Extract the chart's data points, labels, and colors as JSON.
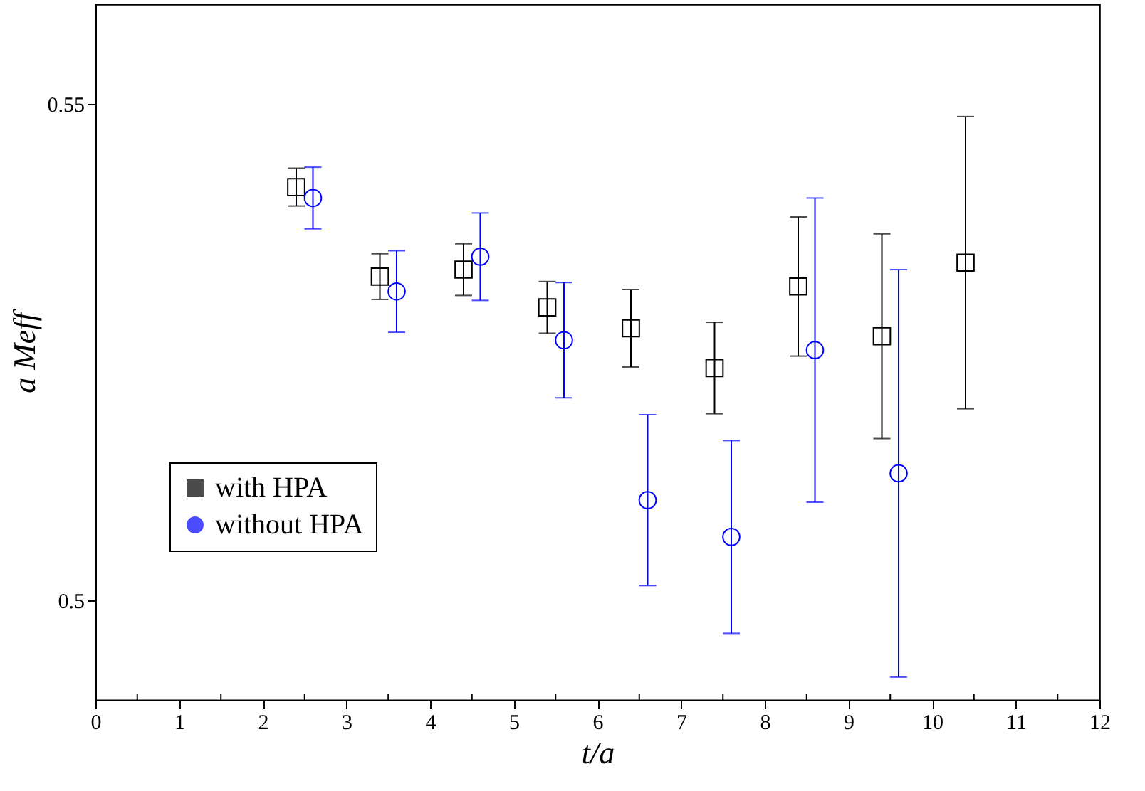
{
  "chart_data": {
    "type": "scatter",
    "xlabel": "t/a",
    "ylabel": "a Meff",
    "xlim": [
      0,
      12
    ],
    "ylim": [
      0.49,
      0.56
    ],
    "xticks": [
      0,
      {
        "value": 0.5,
        "label": null
      },
      1,
      {
        "value": 1.5,
        "label": null
      },
      2,
      {
        "value": 2.5,
        "label": null
      },
      3,
      {
        "value": 3.5,
        "label": null
      },
      4,
      {
        "value": 4.5,
        "label": null
      },
      5,
      {
        "value": 5.5,
        "label": null
      },
      6,
      {
        "value": 6.5,
        "label": null
      },
      7,
      {
        "value": 7.5,
        "label": null
      },
      8,
      {
        "value": 8.5,
        "label": null
      },
      9,
      {
        "value": 9.5,
        "label": null
      },
      10,
      {
        "value": 10.5,
        "label": null
      },
      11,
      {
        "value": 11.5,
        "label": null
      },
      12
    ],
    "yticks": [
      {
        "value": 0.5,
        "label": "0.5"
      },
      0.55
    ],
    "grid": false,
    "legend": "bottom left",
    "series": [
      {
        "name": "with HPA",
        "color": "#000000",
        "marker": "square",
        "x": [
          2.4,
          3.4,
          4.4,
          5.4,
          6.4,
          7.4,
          8.4,
          9.4,
          10.4
        ],
        "values": [
          0.5416,
          0.5326,
          0.5333,
          0.5295,
          0.5274,
          0.5234,
          0.5316,
          0.5266,
          0.534
        ],
        "errors": [
          0.0019,
          0.0023,
          0.0026,
          0.0026,
          0.0039,
          0.0046,
          0.007,
          0.0103,
          0.0147
        ]
      },
      {
        "name": "without HPA",
        "color": "#0000ff",
        "marker": "circle",
        "x": [
          2.6,
          3.6,
          4.6,
          5.6,
          6.6,
          7.6,
          8.6,
          9.6
        ],
        "values": [
          0.5405,
          0.5311,
          0.5346,
          0.5262,
          0.5101,
          0.5064,
          0.5252,
          0.5128
        ],
        "errors": [
          0.0031,
          0.0041,
          0.0044,
          0.0058,
          0.0086,
          0.0097,
          0.0153,
          0.0205
        ]
      }
    ]
  }
}
